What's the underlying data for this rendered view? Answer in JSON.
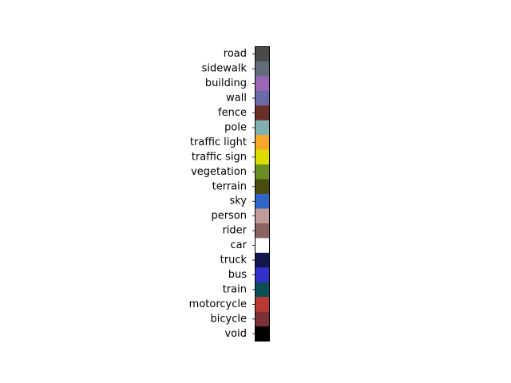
{
  "chart_data": {
    "type": "table",
    "title": "",
    "legend": {
      "entries": [
        {
          "label": "road",
          "color": "#4a4a4a"
        },
        {
          "label": "sidewalk",
          "color": "#636c7b"
        },
        {
          "label": "building",
          "color": "#9b68b8"
        },
        {
          "label": "wall",
          "color": "#6a6aa6"
        },
        {
          "label": "fence",
          "color": "#6a3028"
        },
        {
          "label": "pole",
          "color": "#80b0b0"
        },
        {
          "label": "traffic light",
          "color": "#f8a828"
        },
        {
          "label": "traffic sign",
          "color": "#dcdc00"
        },
        {
          "label": "vegetation",
          "color": "#6b8e23"
        },
        {
          "label": "terrain",
          "color": "#484c10"
        },
        {
          "label": "sky",
          "color": "#3066c8"
        },
        {
          "label": "person",
          "color": "#c09a98"
        },
        {
          "label": "rider",
          "color": "#8c6262"
        },
        {
          "label": "car",
          "color": "#ffffff"
        },
        {
          "label": "truck",
          "color": "#10184e"
        },
        {
          "label": "bus",
          "color": "#3232c8"
        },
        {
          "label": "train",
          "color": "#0a4e56"
        },
        {
          "label": "motorcycle",
          "color": "#b83a30"
        },
        {
          "label": "bicycle",
          "color": "#7c3038"
        },
        {
          "label": "void",
          "color": "#000000"
        }
      ]
    },
    "grid": false
  }
}
